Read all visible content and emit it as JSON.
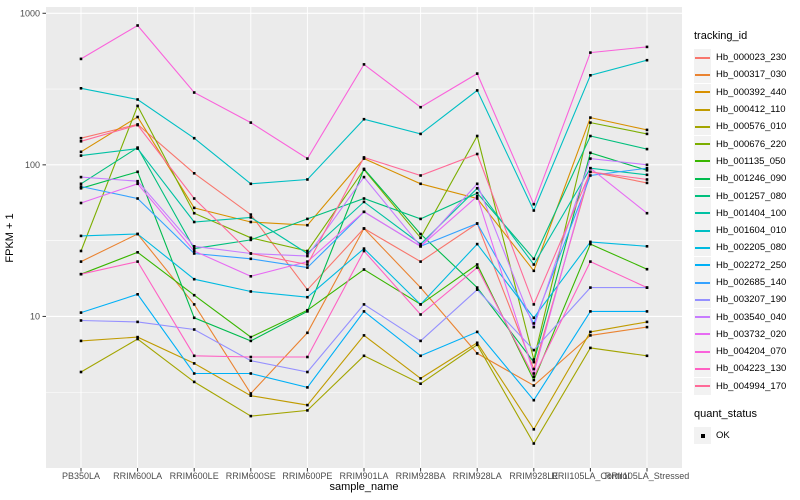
{
  "figure": {
    "background": "#FFFFFF",
    "panel_background": "#EBEBEB",
    "grid_color": "#FFFFFF",
    "axis_text_color": "#4D4D4D",
    "axis_title_color": "#000000",
    "tick_color": "#333333"
  },
  "legend": {
    "tracking_title": "tracking_id",
    "quant_title": "quant_status",
    "quant_value": "OK",
    "key_background": "#F2F2F2",
    "point_color": "#000000"
  },
  "chart_data": {
    "type": "line",
    "title": "",
    "xlabel": "sample_name",
    "ylabel": "FPKM + 1",
    "y_scale": "log10",
    "ylim": [
      1,
      1100
    ],
    "y_major_ticks": [
      10,
      100,
      1000
    ],
    "y_major_tick_labels": [
      "10",
      "100",
      "1000"
    ],
    "y_minor_ticks": [
      3.16,
      31.6,
      316
    ],
    "grid": true,
    "legend_position": "right",
    "point_shape": "filled-square",
    "point_color": "#000000",
    "categories": [
      "PB350LA",
      "RRIM600LA",
      "RRIM600LE",
      "RRIM600SE",
      "RRIM600PE",
      "RRIM901LA",
      "RRIM928BA",
      "RRIM928LA",
      "RRIM928LE",
      "RRII105LA_Control",
      "RRII105LA_Stressed"
    ],
    "series": [
      {
        "name": "Hb_000023_230",
        "color": "#F8766D",
        "values": [
          150,
          185,
          88,
          47,
          15,
          38,
          23,
          41,
          4.5,
          90,
          76
        ]
      },
      {
        "name": "Hb_000317_030",
        "color": "#EA8331",
        "values": [
          23,
          35,
          12,
          3.1,
          7.8,
          38,
          15.5,
          5.7,
          3.5,
          7.5,
          8.5
        ]
      },
      {
        "name": "Hb_000392_440",
        "color": "#D89000",
        "values": [
          122,
          207,
          52,
          42,
          40,
          110,
          75,
          60,
          20,
          205,
          170
        ]
      },
      {
        "name": "Hb_000412_110",
        "color": "#C09B00",
        "values": [
          6.9,
          7.3,
          4.9,
          3.0,
          2.6,
          7.5,
          3.9,
          6.7,
          1.8,
          7.9,
          9.2
        ]
      },
      {
        "name": "Hb_000576_010",
        "color": "#A3A500",
        "values": [
          4.3,
          7.1,
          3.7,
          2.2,
          2.4,
          5.5,
          3.6,
          6.5,
          1.45,
          6.2,
          5.5
        ]
      },
      {
        "name": "Hb_000676_220",
        "color": "#7CAE00",
        "values": [
          27,
          245,
          48,
          33,
          27,
          93,
          33,
          155,
          5.2,
          190,
          160
        ]
      },
      {
        "name": "Hb_001135_050",
        "color": "#39B600",
        "values": [
          19,
          26.5,
          13.8,
          7.3,
          11,
          20.4,
          12,
          22,
          3.8,
          30,
          20.5
        ]
      },
      {
        "name": "Hb_001246_090",
        "color": "#00BB4E",
        "values": [
          70,
          90,
          9.8,
          6.9,
          10.8,
          94,
          35,
          15.5,
          5.0,
          120,
          92
        ]
      },
      {
        "name": "Hb_001257_080",
        "color": "#00BF7D",
        "values": [
          75,
          130,
          28,
          32,
          44,
          60,
          44,
          65,
          24,
          155,
          127
        ]
      },
      {
        "name": "Hb_001404_100",
        "color": "#00C1A3",
        "values": [
          115,
          128,
          42,
          45,
          26,
          57,
          30,
          70,
          22,
          95,
          86
        ]
      },
      {
        "name": "Hb_001604_010",
        "color": "#00BFC4",
        "values": [
          320,
          270,
          150,
          75,
          80,
          200,
          160,
          310,
          50,
          390,
          490
        ]
      },
      {
        "name": "Hb_002205_080",
        "color": "#00BAE0",
        "values": [
          34,
          35,
          17.6,
          14.6,
          13.4,
          28,
          12,
          30,
          9.8,
          31,
          29
        ]
      },
      {
        "name": "Hb_002272_250",
        "color": "#00B0F6",
        "values": [
          10.6,
          14,
          4.2,
          4.2,
          3.4,
          10.8,
          5.5,
          7.9,
          2.8,
          10.8,
          10.8
        ]
      },
      {
        "name": "Hb_002685_140",
        "color": "#35A2FF",
        "values": [
          72,
          60,
          26,
          24,
          21,
          49,
          29,
          41,
          9,
          85,
          95
        ]
      },
      {
        "name": "Hb_003207_190",
        "color": "#9590FF",
        "values": [
          9.4,
          9.2,
          8.2,
          5.1,
          4.3,
          12,
          6.9,
          15,
          6,
          15.5,
          15.5
        ]
      },
      {
        "name": "Hb_003540_040",
        "color": "#C77CFF",
        "values": [
          83,
          78,
          29,
          26,
          25,
          83,
          29,
          75,
          8.5,
          110,
          100
        ]
      },
      {
        "name": "Hb_003732_020",
        "color": "#E76BF3",
        "values": [
          56,
          75,
          27,
          18.4,
          23,
          49,
          29,
          62,
          4.2,
          95,
          48
        ]
      },
      {
        "name": "Hb_004204_070",
        "color": "#FA62DB",
        "values": [
          500,
          830,
          300,
          190,
          110,
          460,
          240,
          400,
          55,
          550,
          600
        ]
      },
      {
        "name": "Hb_004223_130",
        "color": "#FF61C3",
        "values": [
          19,
          23,
          5.5,
          5.4,
          5.4,
          27,
          10.3,
          21,
          4.0,
          23,
          15.5
        ]
      },
      {
        "name": "Hb_004994_170",
        "color": "#FF6A98",
        "values": [
          143,
          183,
          60,
          26,
          22,
          112,
          85,
          118,
          12,
          90,
          80
        ]
      }
    ]
  }
}
